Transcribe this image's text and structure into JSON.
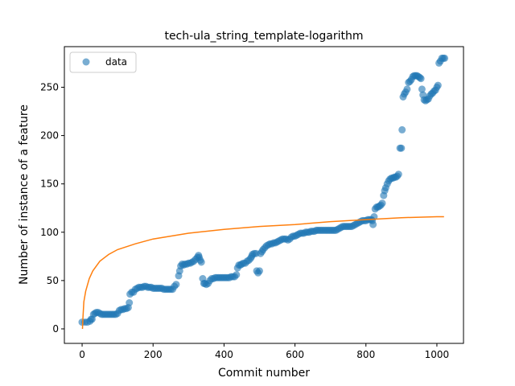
{
  "chart_data": {
    "type": "scatter",
    "title": "tech-ula_string_template-logarithm",
    "xlabel": "Commit number",
    "ylabel": "Number of instance of a feature",
    "xlim": [
      -50,
      1075
    ],
    "ylim": [
      -15,
      292
    ],
    "xticks": [
      0,
      200,
      400,
      600,
      800,
      1000
    ],
    "yticks": [
      0,
      50,
      100,
      150,
      200,
      250
    ],
    "xtick_labels": [
      "0",
      "200",
      "400",
      "600",
      "800",
      "1000"
    ],
    "ytick_labels": [
      "0",
      "50",
      "100",
      "150",
      "200",
      "250"
    ],
    "grid": false,
    "legend_position": "top-left",
    "series": [
      {
        "name": "data",
        "kind": "scatter",
        "color": "#1f77b4",
        "points": [
          [
            0,
            7
          ],
          [
            8,
            7
          ],
          [
            15,
            7
          ],
          [
            22,
            8
          ],
          [
            25,
            10
          ],
          [
            28,
            10
          ],
          [
            32,
            15
          ],
          [
            36,
            16
          ],
          [
            40,
            17
          ],
          [
            45,
            17
          ],
          [
            50,
            16
          ],
          [
            55,
            15
          ],
          [
            60,
            15
          ],
          [
            65,
            15
          ],
          [
            70,
            15
          ],
          [
            75,
            15
          ],
          [
            80,
            15
          ],
          [
            85,
            15
          ],
          [
            90,
            15
          ],
          [
            95,
            15
          ],
          [
            100,
            16
          ],
          [
            105,
            19
          ],
          [
            110,
            20
          ],
          [
            115,
            20
          ],
          [
            120,
            21
          ],
          [
            125,
            21
          ],
          [
            130,
            22
          ],
          [
            133,
            27
          ],
          [
            135,
            36
          ],
          [
            140,
            38
          ],
          [
            145,
            38
          ],
          [
            150,
            41
          ],
          [
            155,
            42
          ],
          [
            160,
            43
          ],
          [
            165,
            43
          ],
          [
            170,
            43
          ],
          [
            175,
            44
          ],
          [
            180,
            44
          ],
          [
            185,
            43
          ],
          [
            190,
            43
          ],
          [
            195,
            43
          ],
          [
            200,
            42
          ],
          [
            205,
            42
          ],
          [
            210,
            42
          ],
          [
            215,
            42
          ],
          [
            220,
            42
          ],
          [
            225,
            42
          ],
          [
            230,
            41
          ],
          [
            235,
            41
          ],
          [
            240,
            41
          ],
          [
            245,
            41
          ],
          [
            250,
            41
          ],
          [
            255,
            41
          ],
          [
            260,
            44
          ],
          [
            265,
            46
          ],
          [
            272,
            55
          ],
          [
            275,
            60
          ],
          [
            278,
            65
          ],
          [
            282,
            67
          ],
          [
            286,
            66
          ],
          [
            290,
            67
          ],
          [
            295,
            67
          ],
          [
            300,
            68
          ],
          [
            305,
            68
          ],
          [
            310,
            69
          ],
          [
            315,
            70
          ],
          [
            320,
            72
          ],
          [
            325,
            74
          ],
          [
            328,
            76
          ],
          [
            330,
            74
          ],
          [
            333,
            71
          ],
          [
            336,
            69
          ],
          [
            340,
            52
          ],
          [
            343,
            47
          ],
          [
            346,
            47
          ],
          [
            350,
            46
          ],
          [
            355,
            47
          ],
          [
            360,
            50
          ],
          [
            365,
            52
          ],
          [
            370,
            52
          ],
          [
            375,
            53
          ],
          [
            380,
            53
          ],
          [
            385,
            53
          ],
          [
            390,
            53
          ],
          [
            395,
            53
          ],
          [
            400,
            53
          ],
          [
            405,
            53
          ],
          [
            410,
            53
          ],
          [
            415,
            53
          ],
          [
            420,
            54
          ],
          [
            425,
            54
          ],
          [
            430,
            54
          ],
          [
            435,
            56
          ],
          [
            438,
            63
          ],
          [
            442,
            66
          ],
          [
            446,
            66
          ],
          [
            450,
            67
          ],
          [
            455,
            68
          ],
          [
            460,
            68
          ],
          [
            465,
            70
          ],
          [
            470,
            71
          ],
          [
            475,
            73
          ],
          [
            478,
            75
          ],
          [
            480,
            77
          ],
          [
            485,
            78
          ],
          [
            490,
            78
          ],
          [
            492,
            60
          ],
          [
            496,
            58
          ],
          [
            500,
            60
          ],
          [
            503,
            78
          ],
          [
            507,
            80
          ],
          [
            510,
            82
          ],
          [
            515,
            84
          ],
          [
            520,
            86
          ],
          [
            525,
            87
          ],
          [
            530,
            88
          ],
          [
            535,
            88
          ],
          [
            540,
            89
          ],
          [
            545,
            89
          ],
          [
            550,
            90
          ],
          [
            555,
            91
          ],
          [
            560,
            92
          ],
          [
            565,
            93
          ],
          [
            570,
            93
          ],
          [
            575,
            93
          ],
          [
            580,
            92
          ],
          [
            585,
            93
          ],
          [
            590,
            95
          ],
          [
            595,
            96
          ],
          [
            600,
            96
          ],
          [
            605,
            97
          ],
          [
            610,
            98
          ],
          [
            615,
            99
          ],
          [
            620,
            99
          ],
          [
            625,
            99
          ],
          [
            630,
            100
          ],
          [
            635,
            100
          ],
          [
            640,
            100
          ],
          [
            645,
            101
          ],
          [
            650,
            101
          ],
          [
            655,
            101
          ],
          [
            660,
            102
          ],
          [
            665,
            102
          ],
          [
            670,
            102
          ],
          [
            675,
            102
          ],
          [
            680,
            102
          ],
          [
            685,
            102
          ],
          [
            690,
            102
          ],
          [
            695,
            102
          ],
          [
            700,
            102
          ],
          [
            705,
            102
          ],
          [
            710,
            102
          ],
          [
            715,
            102
          ],
          [
            720,
            103
          ],
          [
            725,
            104
          ],
          [
            730,
            105
          ],
          [
            735,
            106
          ],
          [
            740,
            106
          ],
          [
            745,
            106
          ],
          [
            750,
            106
          ],
          [
            755,
            106
          ],
          [
            760,
            106
          ],
          [
            765,
            107
          ],
          [
            770,
            108
          ],
          [
            775,
            109
          ],
          [
            780,
            110
          ],
          [
            785,
            111
          ],
          [
            790,
            112
          ],
          [
            795,
            112
          ],
          [
            800,
            112
          ],
          [
            805,
            113
          ],
          [
            810,
            113
          ],
          [
            815,
            113
          ],
          [
            818,
            112
          ],
          [
            820,
            108
          ],
          [
            823,
            116
          ],
          [
            826,
            124
          ],
          [
            830,
            126
          ],
          [
            834,
            126
          ],
          [
            838,
            127
          ],
          [
            842,
            128
          ],
          [
            846,
            130
          ],
          [
            850,
            138
          ],
          [
            853,
            143
          ],
          [
            856,
            146
          ],
          [
            860,
            150
          ],
          [
            864,
            153
          ],
          [
            868,
            155
          ],
          [
            872,
            156
          ],
          [
            876,
            156
          ],
          [
            880,
            157
          ],
          [
            884,
            157
          ],
          [
            888,
            158
          ],
          [
            892,
            160
          ],
          [
            896,
            187
          ],
          [
            900,
            187
          ],
          [
            902,
            206
          ],
          [
            905,
            240
          ],
          [
            908,
            243
          ],
          [
            912,
            245
          ],
          [
            916,
            248
          ],
          [
            920,
            255
          ],
          [
            924,
            256
          ],
          [
            928,
            258
          ],
          [
            932,
            261
          ],
          [
            936,
            262
          ],
          [
            940,
            262
          ],
          [
            944,
            262
          ],
          [
            948,
            261
          ],
          [
            952,
            260
          ],
          [
            955,
            259
          ],
          [
            958,
            248
          ],
          [
            961,
            242
          ],
          [
            964,
            237
          ],
          [
            968,
            236
          ],
          [
            972,
            237
          ],
          [
            976,
            238
          ],
          [
            980,
            241
          ],
          [
            984,
            243
          ],
          [
            988,
            244
          ],
          [
            992,
            246
          ],
          [
            996,
            247
          ],
          [
            1000,
            250
          ],
          [
            1003,
            252
          ],
          [
            1006,
            275
          ],
          [
            1010,
            277
          ],
          [
            1014,
            280
          ],
          [
            1018,
            280
          ],
          [
            1022,
            280
          ]
        ]
      },
      {
        "kind": "line",
        "color": "#ff7f0e",
        "model": "logarithmic fit",
        "points": [
          [
            1,
            0
          ],
          [
            2,
            9
          ],
          [
            5,
            28
          ],
          [
            10,
            39
          ],
          [
            20,
            52
          ],
          [
            30,
            60
          ],
          [
            50,
            70
          ],
          [
            75,
            77
          ],
          [
            100,
            82
          ],
          [
            150,
            88
          ],
          [
            200,
            93
          ],
          [
            300,
            99
          ],
          [
            400,
            103
          ],
          [
            500,
            106
          ],
          [
            600,
            108
          ],
          [
            700,
            111
          ],
          [
            800,
            113
          ],
          [
            900,
            115
          ],
          [
            1000,
            116
          ],
          [
            1020,
            116
          ]
        ]
      }
    ]
  }
}
